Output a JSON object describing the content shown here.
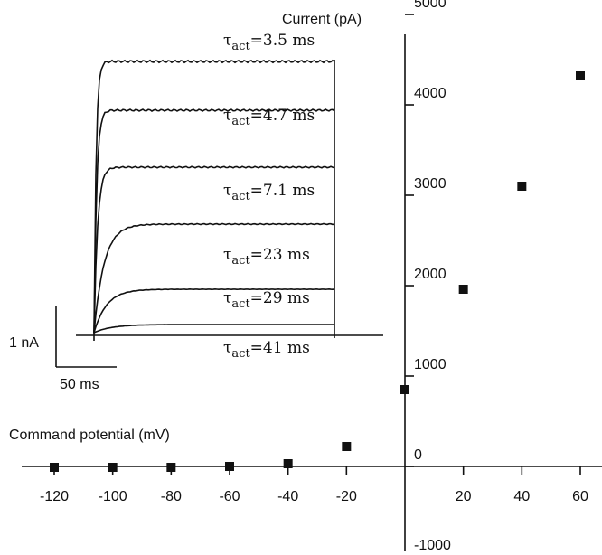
{
  "chart_data": {
    "type": "scatter",
    "xlabel": "Command potential (mV)",
    "ylabel": "Current (pA)",
    "x_ticks": [
      -120,
      -100,
      -80,
      -60,
      -40,
      -20,
      20,
      40,
      60
    ],
    "y_ticks": [
      5000,
      4000,
      3000,
      2000,
      1000,
      0,
      -1000
    ],
    "xlim": [
      -120,
      60
    ],
    "ylim": [
      -1000,
      5000
    ],
    "grid": false,
    "points": [
      {
        "x": -120,
        "y": -10
      },
      {
        "x": -100,
        "y": -10
      },
      {
        "x": -80,
        "y": -10
      },
      {
        "x": -60,
        "y": 0
      },
      {
        "x": -40,
        "y": 30
      },
      {
        "x": -20,
        "y": 220
      },
      {
        "x": 0,
        "y": 850
      },
      {
        "x": 20,
        "y": 1960
      },
      {
        "x": 40,
        "y": 3100
      },
      {
        "x": 60,
        "y": 4320
      }
    ],
    "inset": {
      "type": "current-traces",
      "scale_current_label": "1 nA",
      "scale_time_label": "50 ms",
      "traces": [
        {
          "label": "=3.5 ms",
          "amplitude": 1.0
        },
        {
          "label": "=4.7 ms",
          "amplitude": 0.82
        },
        {
          "label": "=7.1 ms",
          "amplitude": 0.61
        },
        {
          "label": "=23 ms",
          "amplitude": 0.4
        },
        {
          "label": "=29 ms",
          "amplitude": 0.16
        },
        {
          "label": "=41 ms",
          "amplitude": 0.03
        }
      ]
    }
  }
}
